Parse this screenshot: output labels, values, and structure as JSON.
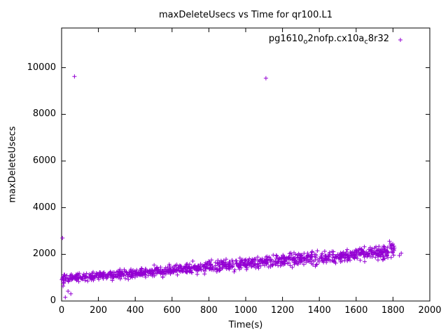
{
  "window": {
    "background": "#ffffff"
  },
  "chart_data": {
    "type": "scatter",
    "title": "maxDeleteUsecs vs Time for qr100.L1",
    "xlabel": "Time(s)",
    "ylabel": "maxDeleteUsecs",
    "xlim": [
      0,
      2000
    ],
    "ylim": [
      0,
      11700
    ],
    "xticks": [
      0,
      200,
      400,
      600,
      800,
      1000,
      1200,
      1400,
      1600,
      1800,
      2000
    ],
    "yticks": [
      0,
      2000,
      4000,
      6000,
      8000,
      10000
    ],
    "grid": false,
    "legend_position": "top-right-inside",
    "marker_color": "#9400d3",
    "series": [
      {
        "name": "pg1610_o2nofp.cx10a_c8r32",
        "label_parts": [
          {
            "text": "pg1610"
          },
          {
            "text": "o",
            "sub": true
          },
          {
            "text": "2nofp.cx10a"
          },
          {
            "text": "c",
            "sub": true
          },
          {
            "text": "8r32"
          }
        ],
        "color": "#9400d3",
        "marker": "plus",
        "trend": {
          "x": [
            0,
            200,
            400,
            600,
            800,
            1000,
            1200,
            1400,
            1600,
            1800
          ],
          "y": [
            950,
            1080,
            1180,
            1330,
            1480,
            1600,
            1720,
            1850,
            1980,
            2150
          ]
        },
        "band": {
          "count": 1100,
          "x_range": [
            0,
            1810
          ],
          "noise_base": 280,
          "noise_growth": 220,
          "seed": 42
        },
        "outliers": [
          [
            5,
            2700
          ],
          [
            8,
            640
          ],
          [
            12,
            760
          ],
          [
            20,
            160
          ],
          [
            35,
            420
          ],
          [
            50,
            310
          ],
          [
            70,
            9620
          ],
          [
            1110,
            9550
          ],
          [
            1835,
            1950
          ],
          [
            1845,
            2050
          ]
        ]
      }
    ]
  }
}
